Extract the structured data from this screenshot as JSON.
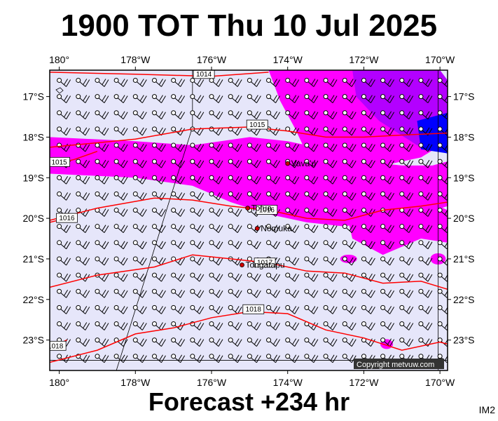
{
  "title": "1900 TOT Thu 10 Jul 2025",
  "footer": "Forecast +234 hr",
  "image_code": "IM2",
  "copyright": "Copyright metvuw.com",
  "map": {
    "lon_range": [
      -180.25,
      -169.8
    ],
    "lat_range": [
      -16.35,
      -23.75
    ],
    "lon_ticks": [
      {
        "lon": -180,
        "label": "180°"
      },
      {
        "lon": -178,
        "label": "178°W"
      },
      {
        "lon": -176,
        "label": "176°W"
      },
      {
        "lon": -174,
        "label": "174°W"
      },
      {
        "lon": -172,
        "label": "172°W"
      },
      {
        "lon": -170,
        "label": "170°W"
      }
    ],
    "lat_ticks": [
      {
        "lat": -17,
        "label": "17°S"
      },
      {
        "lat": -18,
        "label": "18°S"
      },
      {
        "lat": -19,
        "label": "19°S"
      },
      {
        "lat": -20,
        "label": "20°S"
      },
      {
        "lat": -21,
        "label": "21°S"
      },
      {
        "lat": -22,
        "label": "22°S"
      },
      {
        "lat": -23,
        "label": "23°S"
      }
    ],
    "places": [
      {
        "name": "Vava'u",
        "lon": -174.0,
        "lat": -18.65
      },
      {
        "name": "Tofua",
        "lon": -175.05,
        "lat": -19.75
      },
      {
        "name": "Nomuka",
        "lon": -174.8,
        "lat": -20.25
      },
      {
        "name": "Tongatapu",
        "lon": -175.2,
        "lat": -21.15
      }
    ],
    "isobars": [
      {
        "label": "1014",
        "points": [
          [
            -180.25,
            -16.4
          ],
          [
            -178,
            -16.45
          ],
          [
            -176,
            -16.5
          ],
          [
            -174.5,
            -16.4
          ]
        ],
        "label_at": [
          -176.2,
          -16.45
        ]
      },
      {
        "label": "1015",
        "points": [
          [
            -180.25,
            -18.25
          ],
          [
            -178,
            -18.05
          ],
          [
            -176.5,
            -17.8
          ],
          [
            -175,
            -17.75
          ],
          [
            -174,
            -17.85
          ],
          [
            -173,
            -18.0
          ],
          [
            -172,
            -18.0
          ],
          [
            -171,
            -17.95
          ],
          [
            -169.8,
            -17.9
          ]
        ],
        "label_at": [
          -174.8,
          -17.7
        ]
      },
      {
        "label": "1015",
        "points": [
          [
            -180.25,
            -18.7
          ],
          [
            -179.6,
            -18.55
          ],
          [
            -179,
            -18.35
          ]
        ],
        "label_at": [
          -180,
          -18.62
        ]
      },
      {
        "label": "1016",
        "points": [
          [
            -180.25,
            -20.05
          ],
          [
            -179,
            -19.75
          ],
          [
            -177.5,
            -19.5
          ],
          [
            -176.5,
            -19.55
          ],
          [
            -175.5,
            -19.7
          ],
          [
            -174.5,
            -19.8
          ],
          [
            -173.5,
            -20.0
          ],
          [
            -172.5,
            -20.05
          ],
          [
            -171.5,
            -19.8
          ],
          [
            -170.5,
            -19.7
          ],
          [
            -169.8,
            -19.6
          ]
        ],
        "label_at": [
          -174.55,
          -19.8
        ]
      },
      {
        "label": "1016",
        "points": [
          [
            -180.25,
            -20.1
          ],
          [
            -179.6,
            -19.95
          ]
        ],
        "label_at": [
          -179.8,
          -20.0
        ]
      },
      {
        "label": "1017",
        "points": [
          [
            -180.25,
            -21.7
          ],
          [
            -179,
            -21.4
          ],
          [
            -177.5,
            -21.2
          ],
          [
            -176.5,
            -20.9
          ],
          [
            -175.5,
            -21.0
          ],
          [
            -174.5,
            -21.1
          ],
          [
            -173.5,
            -21.3
          ],
          [
            -172.5,
            -21.35
          ],
          [
            -171.5,
            -21.6
          ],
          [
            -170.5,
            -21.55
          ],
          [
            -169.8,
            -21.75
          ]
        ],
        "label_at": [
          -174.6,
          -21.1
        ]
      },
      {
        "label": "1018",
        "points": [
          [
            -180.25,
            -23.55
          ],
          [
            -179,
            -23.25
          ],
          [
            -178,
            -22.85
          ],
          [
            -177,
            -22.7
          ],
          [
            -176,
            -22.45
          ],
          [
            -175,
            -22.3
          ],
          [
            -174,
            -22.35
          ],
          [
            -173,
            -22.75
          ],
          [
            -172,
            -22.95
          ],
          [
            -171,
            -23.25
          ],
          [
            -170,
            -23.05
          ],
          [
            -169.8,
            -23.1
          ]
        ],
        "label_at": [
          -174.9,
          -22.25
        ]
      },
      {
        "label": "1018",
        "points": [
          [
            -180.25,
            -23.2
          ],
          [
            -179.8,
            -23.0
          ]
        ],
        "label_at": [
          -180.1,
          -23.15
        ]
      }
    ],
    "precip_bands": [
      {
        "color": "#ff00ff",
        "points": [
          [
            -180.25,
            -18.0
          ],
          [
            -178,
            -18.1
          ],
          [
            -176.5,
            -18.2
          ],
          [
            -175,
            -18.0
          ],
          [
            -174,
            -18.1
          ],
          [
            -173,
            -18.3
          ],
          [
            -172,
            -18.6
          ],
          [
            -171,
            -18.7
          ],
          [
            -170.2,
            -18.7
          ],
          [
            -169.8,
            -18.6
          ],
          [
            -169.8,
            -19.7
          ],
          [
            -170.5,
            -19.9
          ],
          [
            -171.5,
            -20.0
          ],
          [
            -172.5,
            -20.2
          ],
          [
            -173.5,
            -20.1
          ],
          [
            -174.5,
            -19.9
          ],
          [
            -175.5,
            -19.6
          ],
          [
            -176.5,
            -19.2
          ],
          [
            -178,
            -19.0
          ],
          [
            -180.25,
            -18.9
          ]
        ]
      },
      {
        "color": "#ff00ff",
        "points": [
          [
            -174.5,
            -16.35
          ],
          [
            -172,
            -16.35
          ],
          [
            -170,
            -16.35
          ],
          [
            -169.8,
            -16.6
          ],
          [
            -169.8,
            -18.1
          ],
          [
            -170.5,
            -18.5
          ],
          [
            -171.5,
            -18.7
          ],
          [
            -172.5,
            -18.7
          ],
          [
            -173.5,
            -18.4
          ],
          [
            -173.8,
            -17.8
          ],
          [
            -174.2,
            -17.1
          ]
        ]
      },
      {
        "color": "#ff00ff",
        "points": [
          [
            -172.5,
            -19.7
          ],
          [
            -171.5,
            -19.6
          ],
          [
            -170.5,
            -19.5
          ],
          [
            -169.8,
            -19.8
          ],
          [
            -169.8,
            -20.6
          ],
          [
            -170.5,
            -20.5
          ],
          [
            -171.5,
            -20.9
          ],
          [
            -172.3,
            -20.5
          ]
        ]
      }
    ],
    "precip_cores": [
      {
        "color": "#b300ff",
        "points": [
          [
            -172.3,
            -16.35
          ],
          [
            -170,
            -16.35
          ],
          [
            -169.8,
            -16.6
          ],
          [
            -169.8,
            -18.4
          ],
          [
            -170.6,
            -18.2
          ],
          [
            -171.6,
            -17.6
          ],
          [
            -172.2,
            -17.0
          ]
        ]
      },
      {
        "color": "#0000ff",
        "points": [
          [
            -170.6,
            -17.6
          ],
          [
            -169.8,
            -17.4
          ],
          [
            -169.8,
            -18.4
          ],
          [
            -170.5,
            -18.3
          ]
        ]
      }
    ],
    "blobs": [
      {
        "color": "#ff00ff",
        "lon": -172.4,
        "lat": -21.0,
        "rx": 12,
        "ry": 6
      },
      {
        "color": "#ff00ff",
        "lon": -170.05,
        "lat": -21.0,
        "rx": 11,
        "ry": 8
      },
      {
        "color": "#ff00ff",
        "lon": -171.4,
        "lat": -23.1,
        "rx": 9,
        "ry": 7
      }
    ]
  }
}
